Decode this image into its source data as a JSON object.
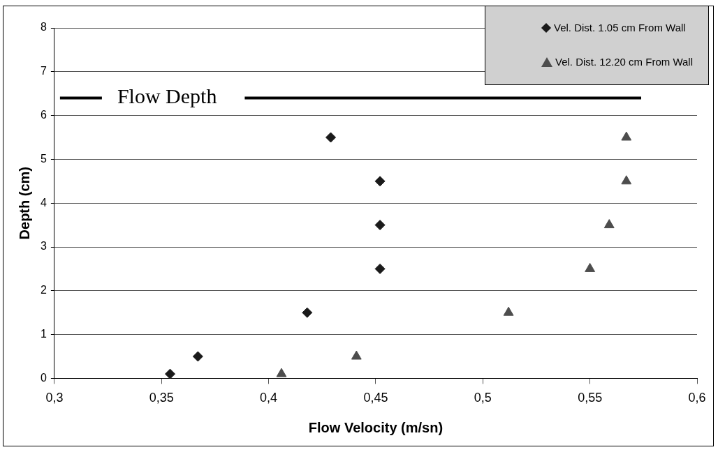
{
  "chart_data": {
    "type": "scatter",
    "xlabel": "Flow Velocity (m/sn)",
    "ylabel": "Depth (cm)",
    "series": [
      {
        "name": "Vel. Dist. 1.05 cm From Wall",
        "color": "#1a1a1a",
        "marker": "diamond",
        "x": [
          0.354,
          0.367,
          0.418,
          0.452,
          0.452,
          0.452,
          0.429
        ],
        "values": [
          0.1,
          0.5,
          1.5,
          2.5,
          3.5,
          4.5,
          5.5
        ]
      },
      {
        "name": "Vel. Dist. 12.20 cm From Wall",
        "color": "#4d4d4d",
        "marker": "triangle",
        "x": [
          0.406,
          0.441,
          0.512,
          0.55,
          0.559,
          0.567,
          0.567
        ],
        "values": [
          0.1,
          0.5,
          1.5,
          2.5,
          3.5,
          4.5,
          5.5
        ]
      }
    ],
    "xlim": [
      0.3,
      0.6
    ],
    "xticks": [
      {
        "value": 0.3,
        "label": "0,3"
      },
      {
        "value": 0.35,
        "label": "0,35"
      },
      {
        "value": 0.4,
        "label": "0,4"
      },
      {
        "value": 0.45,
        "label": "0,45"
      },
      {
        "value": 0.5,
        "label": "0,5"
      },
      {
        "value": 0.55,
        "label": "0,55"
      },
      {
        "value": 0.6,
        "label": "0,6"
      }
    ],
    "ylim": [
      0,
      8
    ],
    "yticks": [
      0,
      1,
      2,
      3,
      4,
      5,
      6,
      7,
      8
    ],
    "ref_lines": [
      {
        "axis": "y",
        "value": 6.4,
        "label": "Flow Depth",
        "color": "#000000"
      }
    ],
    "grid": "y",
    "legend": "top right"
  }
}
